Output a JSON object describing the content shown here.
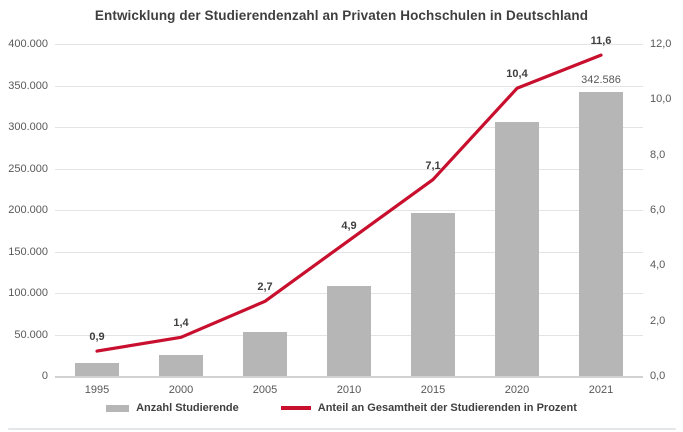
{
  "page": {
    "background": "#ffffff",
    "bottom_divider_color": "#e3e7ea"
  },
  "chart_data": {
    "type": "bar",
    "subtype": "combo-bar-line",
    "title": "Entwicklung der Studierendenzahl an Privaten Hochschulen in Deutschland",
    "categories": [
      "1995",
      "2000",
      "2005",
      "2010",
      "2015",
      "2020",
      "2021"
    ],
    "series": [
      {
        "name": "Anzahl Studierende",
        "type": "bar",
        "axis": "left",
        "color": "#b6b6b6",
        "values": [
          16000,
          25000,
          53000,
          108000,
          196000,
          306000,
          342586
        ],
        "value_labels": [
          "",
          "",
          "",
          "",
          "",
          "",
          "342.586"
        ]
      },
      {
        "name": "Anteil an Gesamtheit der Studierenden in Prozent",
        "type": "line",
        "axis": "right",
        "color": "#c8102e",
        "stroke_width": 3.2,
        "values": [
          0.9,
          1.4,
          2.7,
          4.9,
          7.1,
          10.4,
          11.6
        ],
        "value_labels": [
          "0,9",
          "1,4",
          "2,7",
          "4,9",
          "7,1",
          "10,4",
          "11,6"
        ]
      }
    ],
    "left_axis": {
      "min": 0,
      "max": 400000,
      "step": 50000,
      "tick_labels": [
        "400.000",
        "350.000",
        "300.000",
        "250.000",
        "200.000",
        "150.000",
        "100.000",
        "50.000",
        "0"
      ]
    },
    "right_axis": {
      "min": 0,
      "max": 12,
      "step": 2,
      "tick_labels": [
        "12,0",
        "10,0",
        "8,0",
        "6,0",
        "4,0",
        "2,0",
        "0,0"
      ]
    },
    "grid": true,
    "legend_position": "bottom",
    "text_colors": {
      "title": "#3f3f3f",
      "ticks": "#595959",
      "data_labels": "#3f3f3f",
      "bar_label": "#595959"
    }
  }
}
